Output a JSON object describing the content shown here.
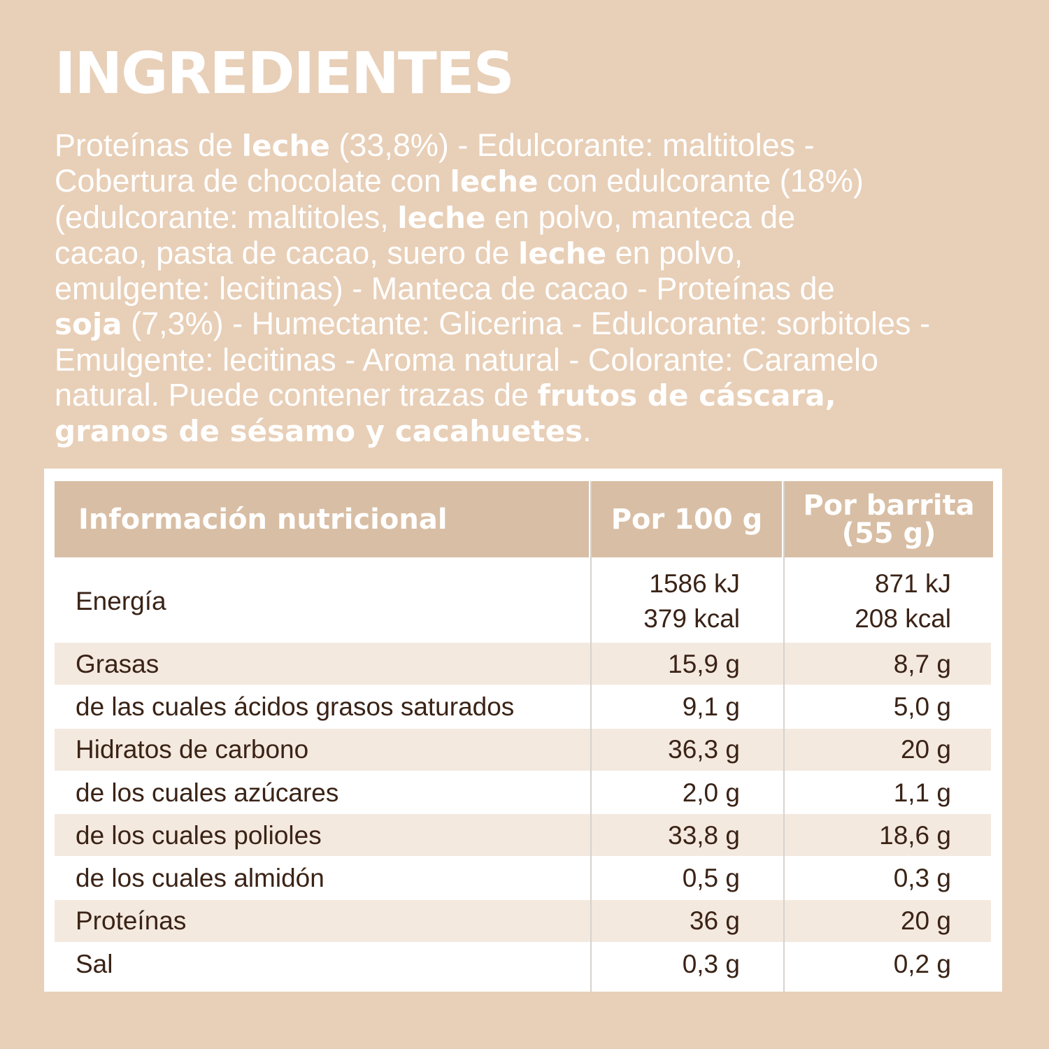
{
  "title": "INGREDIENTES",
  "ingredients": {
    "lines": [
      [
        {
          "text": "Proteínas de ",
          "bold": false
        },
        {
          "text": "leche",
          "bold": true
        },
        {
          "text": " (33,8%) - Edulcorante: maltitoles -",
          "bold": false
        }
      ],
      [
        {
          "text": "Cobertura de chocolate con ",
          "bold": false
        },
        {
          "text": "leche",
          "bold": true
        },
        {
          "text": " con edulcorante (18%)",
          "bold": false
        }
      ],
      [
        {
          "text": "(edulcorante: maltitoles, ",
          "bold": false
        },
        {
          "text": "leche",
          "bold": true
        },
        {
          "text": " en polvo, manteca de",
          "bold": false
        }
      ],
      [
        {
          "text": "cacao, pasta de cacao, suero de ",
          "bold": false
        },
        {
          "text": "leche",
          "bold": true
        },
        {
          "text": " en polvo,",
          "bold": false
        }
      ],
      [
        {
          "text": "emulgente: lecitinas) - Manteca de cacao - Proteínas de",
          "bold": false
        }
      ],
      [
        {
          "text": "soja",
          "bold": true
        },
        {
          "text": " (7,3%) - Humectante: Glicerina - Edulcorante: sorbitoles -",
          "bold": false
        }
      ],
      [
        {
          "text": "Emulgente: lecitinas - Aroma natural - Colorante: Caramelo",
          "bold": false
        }
      ],
      [
        {
          "text": "natural. Puede contener trazas de ",
          "bold": false
        },
        {
          "text": "frutos de cáscara,",
          "bold": true
        }
      ],
      [
        {
          "text": "granos de sésamo y cacahuetes",
          "bold": true
        },
        {
          "text": ".",
          "bold": false
        }
      ]
    ]
  },
  "table": {
    "header": [
      [
        "Información nutricional"
      ],
      [
        "Por 100 g"
      ],
      [
        "Por barrita",
        "(55 g)"
      ]
    ],
    "rows": [
      [
        [
          "Energía"
        ],
        [
          "1586 kJ",
          "379 kcal"
        ],
        [
          "871 kJ",
          "208 kcal"
        ]
      ],
      [
        [
          "Grasas"
        ],
        [
          "15,9 g"
        ],
        [
          "8,7 g"
        ]
      ],
      [
        [
          "de las cuales ácidos grasos saturados"
        ],
        [
          "9,1 g"
        ],
        [
          "5,0 g"
        ]
      ],
      [
        [
          "Hidratos de carbono"
        ],
        [
          "36,3 g"
        ],
        [
          "20 g"
        ]
      ],
      [
        [
          "de los cuales azúcares"
        ],
        [
          "2,0 g"
        ],
        [
          "1,1 g"
        ]
      ],
      [
        [
          "de los cuales polioles"
        ],
        [
          "33,8 g"
        ],
        [
          "18,6 g"
        ]
      ],
      [
        [
          "de los cuales almidón"
        ],
        [
          "0,5 g"
        ],
        [
          "0,3 g"
        ]
      ],
      [
        [
          "Proteínas"
        ],
        [
          "36 g"
        ],
        [
          "20 g"
        ]
      ],
      [
        [
          "Sal"
        ],
        [
          "0,3 g"
        ],
        [
          "0,2 g"
        ]
      ]
    ]
  }
}
